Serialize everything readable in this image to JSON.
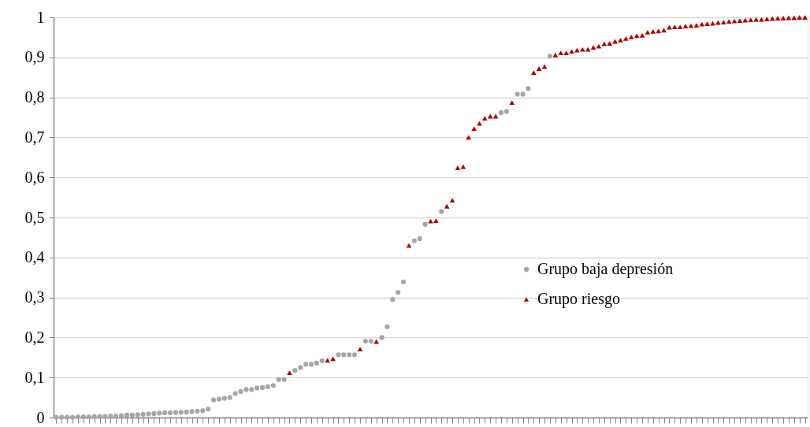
{
  "chart_data": {
    "type": "scatter",
    "categories": [
      null,
      null,
      null,
      null,
      null,
      null,
      null,
      null,
      null,
      null,
      null,
      null,
      null,
      null,
      null,
      null,
      null,
      null,
      null,
      null,
      null,
      null,
      null,
      null,
      null,
      null,
      null,
      null,
      null,
      null,
      null,
      null,
      null,
      null,
      null,
      null,
      null,
      null,
      null,
      null,
      null,
      null,
      null,
      null,
      null,
      null,
      null,
      null,
      null,
      null,
      null,
      null,
      null,
      null,
      null,
      null,
      null,
      null,
      null,
      null,
      null,
      null,
      null,
      null,
      null,
      null,
      null,
      null,
      null,
      null,
      null,
      null,
      null,
      null,
      null,
      null,
      null,
      null,
      null,
      null,
      null,
      null,
      null,
      null,
      null,
      null,
      null,
      null,
      null,
      null,
      null,
      null,
      null,
      null,
      null,
      null,
      null,
      null,
      null,
      null,
      null,
      null,
      null,
      null,
      null,
      null,
      null,
      null,
      null,
      null,
      null,
      null,
      null,
      null,
      null,
      null,
      null,
      null,
      null,
      null,
      null,
      null,
      null,
      null,
      null,
      null,
      null,
      null,
      null,
      null,
      null,
      null,
      null,
      null,
      null,
      null,
      null,
      null,
      null
    ],
    "series": [
      {
        "name": "Grupo baja depresión",
        "color": "#a6a6a6",
        "marker": "circle",
        "values": [
          0.001,
          0.001,
          0.001,
          0.001,
          0.002,
          0.002,
          0.002,
          0.003,
          0.003,
          0.003,
          0.004,
          0.004,
          0.005,
          0.006,
          0.006,
          0.007,
          0.008,
          0.009,
          0.01,
          0.011,
          0.012,
          0.012,
          0.013,
          0.013,
          0.014,
          0.015,
          0.016,
          0.017,
          0.021,
          0.044,
          0.046,
          0.048,
          0.05,
          0.06,
          0.065,
          0.07,
          0.07,
          0.074,
          0.075,
          0.077,
          0.08,
          0.095,
          0.095,
          null,
          0.118,
          0.125,
          0.133,
          0.133,
          0.136,
          0.142,
          null,
          null,
          0.157,
          0.157,
          0.157,
          0.157,
          null,
          0.191,
          0.191,
          null,
          0.2,
          0.227,
          0.295,
          0.313,
          0.339,
          null,
          0.442,
          0.447,
          0.483,
          null,
          null,
          0.515,
          null,
          null,
          null,
          null,
          null,
          null,
          null,
          null,
          null,
          null,
          0.762,
          0.765,
          null,
          0.808,
          0.808,
          0.822,
          null,
          null,
          null,
          0.903,
          null,
          null,
          null,
          null,
          null,
          null,
          null,
          null,
          null,
          null,
          null,
          null,
          null,
          null,
          null,
          null,
          null,
          null,
          null,
          null,
          null,
          null,
          null,
          null,
          null,
          null,
          null,
          null,
          null,
          null,
          null,
          null,
          null,
          null,
          null,
          null,
          null,
          null,
          null,
          null,
          null,
          null,
          null,
          null,
          null,
          null,
          null
        ]
      },
      {
        "name": "Grupo riesgo",
        "color": "#b00000",
        "marker": "triangle",
        "values": [
          null,
          null,
          null,
          null,
          null,
          null,
          null,
          null,
          null,
          null,
          null,
          null,
          null,
          null,
          null,
          null,
          null,
          null,
          null,
          null,
          null,
          null,
          null,
          null,
          null,
          null,
          null,
          null,
          null,
          null,
          null,
          null,
          null,
          null,
          null,
          null,
          null,
          null,
          null,
          null,
          null,
          null,
          null,
          0.112,
          null,
          null,
          null,
          null,
          null,
          null,
          0.143,
          0.147,
          null,
          null,
          null,
          null,
          0.171,
          null,
          null,
          0.19,
          null,
          null,
          null,
          null,
          null,
          0.43,
          null,
          null,
          null,
          0.491,
          0.492,
          null,
          0.528,
          0.543,
          0.624,
          0.627,
          0.7,
          0.722,
          0.735,
          0.748,
          0.753,
          0.753,
          null,
          null,
          0.787,
          null,
          null,
          null,
          0.862,
          0.872,
          0.877,
          null,
          0.906,
          0.911,
          0.911,
          0.915,
          0.918,
          0.92,
          0.92,
          0.925,
          0.928,
          0.934,
          0.935,
          0.94,
          0.943,
          0.947,
          0.951,
          0.954,
          0.955,
          0.963,
          0.965,
          0.966,
          0.968,
          0.975,
          0.976,
          0.976,
          0.978,
          0.979,
          0.98,
          0.983,
          0.984,
          0.985,
          0.987,
          0.988,
          0.99,
          0.991,
          0.992,
          0.993,
          0.994,
          0.995,
          0.995,
          0.996,
          0.997,
          0.998,
          0.998,
          0.999,
          0.999,
          1.0,
          1.0
        ]
      }
    ],
    "ylim": [
      0,
      1
    ],
    "yticks": [
      0,
      {
        "value": 0.1,
        "label": "0,1"
      },
      {
        "value": 0.2,
        "label": "0,2"
      },
      {
        "value": 0.3,
        "label": "0,3"
      },
      {
        "value": 0.4,
        "label": "0,4"
      },
      {
        "value": 0.5,
        "label": "0,5"
      },
      {
        "value": 0.6,
        "label": "0,6"
      },
      {
        "value": 0.7,
        "label": "0,7"
      },
      {
        "value": 0.8,
        "label": "0,8"
      },
      {
        "value": 0.9,
        "label": "0,9"
      },
      1
    ],
    "tick_labels": "y",
    "grid": "y",
    "legend": "right"
  }
}
